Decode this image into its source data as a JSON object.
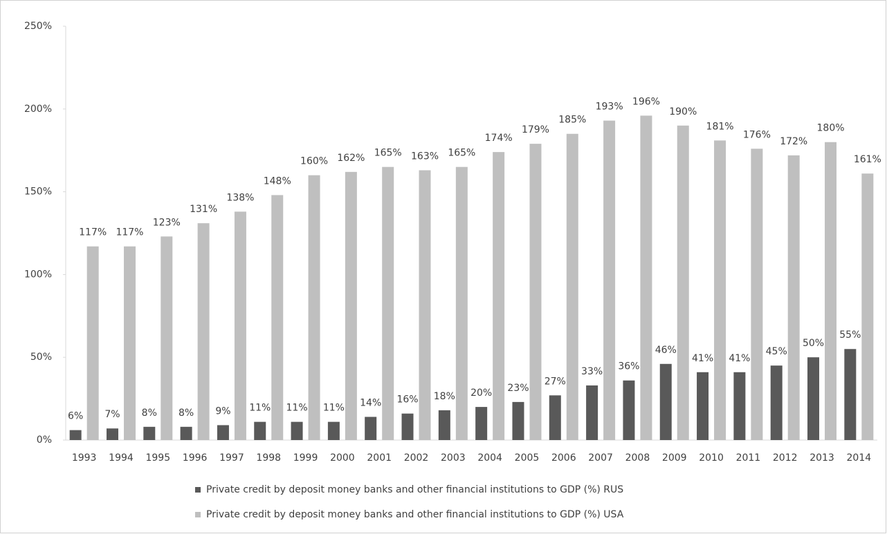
{
  "chart_data": {
    "type": "bar",
    "categories": [
      "1993",
      "1994",
      "1995",
      "1996",
      "1997",
      "1998",
      "1999",
      "2000",
      "2001",
      "2002",
      "2003",
      "2004",
      "2005",
      "2006",
      "2007",
      "2008",
      "2009",
      "2010",
      "2011",
      "2012",
      "2013",
      "2014"
    ],
    "series": [
      {
        "name": "Private credit by deposit money banks and other financial institutions to GDP (%) RUS",
        "color": "#595959",
        "values": [
          6,
          7,
          8,
          8,
          9,
          11,
          11,
          11,
          14,
          16,
          18,
          20,
          23,
          27,
          33,
          36,
          46,
          41,
          41,
          45,
          50,
          55
        ],
        "value_labels": [
          "6%",
          "7%",
          "8%",
          "8%",
          "9%",
          "11%",
          "11%",
          "11%",
          "14%",
          "16%",
          "18%",
          "20%",
          "23%",
          "27%",
          "33%",
          "36%",
          "46%",
          "41%",
          "41%",
          "45%",
          "50%",
          "55%"
        ]
      },
      {
        "name": "Private credit by deposit money banks and other financial institutions to GDP (%) USA",
        "color": "#bfbfbf",
        "values": [
          117,
          117,
          123,
          131,
          138,
          148,
          160,
          162,
          165,
          163,
          165,
          174,
          179,
          185,
          193,
          196,
          190,
          181,
          176,
          172,
          180,
          161
        ],
        "value_labels": [
          "117%",
          "117%",
          "123%",
          "131%",
          "138%",
          "148%",
          "160%",
          "162%",
          "165%",
          "163%",
          "165%",
          "174%",
          "179%",
          "185%",
          "193%",
          "196%",
          "190%",
          "181%",
          "176%",
          "172%",
          "180%",
          "161%"
        ]
      }
    ],
    "ylim": [
      0,
      250
    ],
    "yticks": [
      {
        "value": 0,
        "label": "0%"
      },
      {
        "value": 50,
        "label": "50%"
      },
      {
        "value": 100,
        "label": "100%"
      },
      {
        "value": 150,
        "label": "150%"
      },
      {
        "value": 200,
        "label": "200%"
      },
      {
        "value": 250,
        "label": "250%"
      }
    ],
    "grid": false,
    "legend": "bottom"
  }
}
